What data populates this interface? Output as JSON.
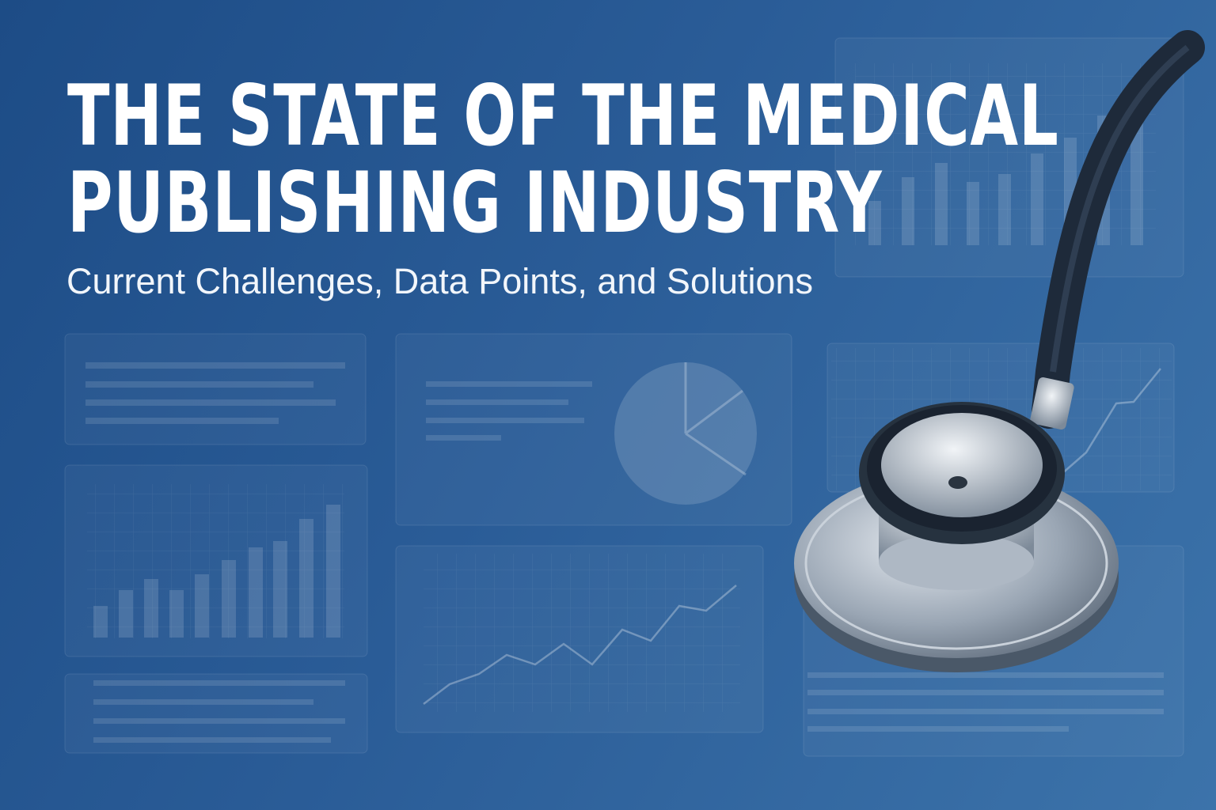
{
  "header": {
    "title_line1": "THE STATE OF THE MEDICAL",
    "title_line2": "PUBLISHING INDUSTRY",
    "subtitle": "Current Challenges, Data Points, and Solutions"
  },
  "illustration": {
    "icon": "stethoscope-icon",
    "background_color": "#2a5c97",
    "accent_color": "#ffffff"
  }
}
